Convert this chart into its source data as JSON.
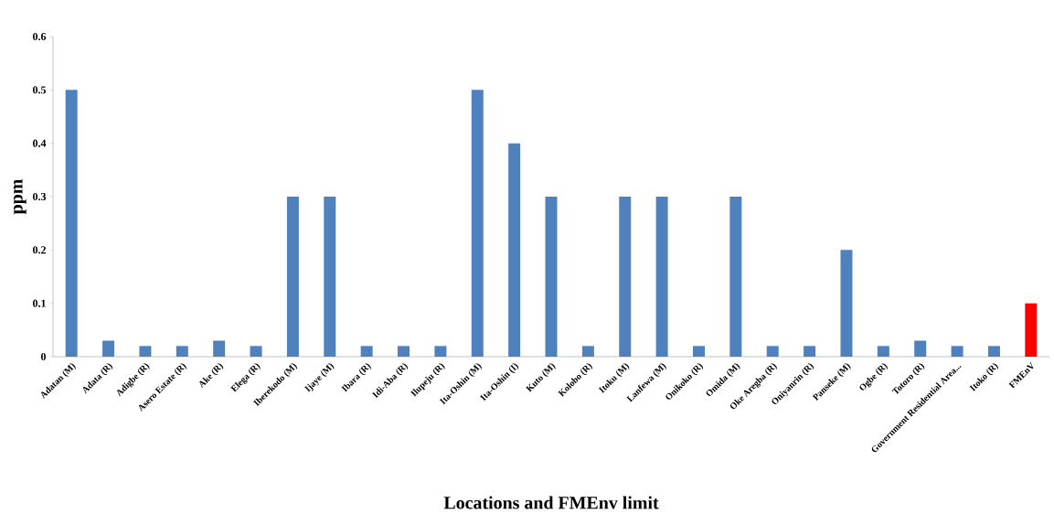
{
  "chart_data": {
    "type": "bar",
    "xlabel": "Locations and FMEnv  limit",
    "ylabel": "ppm",
    "categories": [
      "Adatan (M)",
      "Adata (R)",
      "Adigbe (R)",
      "Asero Estate (R)",
      "Ake (R)",
      "Elega (R)",
      "Iberekodo (M)",
      "Ijaye (M)",
      "Ibara (R)",
      "Idi-Aba (R)",
      "Ilupeju (R)",
      "Ita-Oshin (M)",
      "Ita-Oshin (I)",
      "Kuto (M)",
      "Kolobo (R)",
      "Itoku (M)",
      "Lanfewa (M)",
      "Onikoko (R)",
      "Omida (M)",
      "Oke Aregba (R)",
      "Oniyanrin (R)",
      "Panseke (M)",
      "Ogbe (R)",
      "Totoro  (R)",
      "Government Residential Area...",
      "Itoko (R)",
      "FMEnV"
    ],
    "values": [
      0.5,
      0.03,
      0.02,
      0.02,
      0.03,
      0.02,
      0.3,
      0.3,
      0.02,
      0.02,
      0.02,
      0.5,
      0.4,
      0.3,
      0.02,
      0.3,
      0.3,
      0.02,
      0.3,
      0.02,
      0.02,
      0.2,
      0.02,
      0.03,
      0.02,
      0.02,
      0.1
    ],
    "colors": [
      "#4f81bd",
      "#4f81bd",
      "#4f81bd",
      "#4f81bd",
      "#4f81bd",
      "#4f81bd",
      "#4f81bd",
      "#4f81bd",
      "#4f81bd",
      "#4f81bd",
      "#4f81bd",
      "#4f81bd",
      "#4f81bd",
      "#4f81bd",
      "#4f81bd",
      "#4f81bd",
      "#4f81bd",
      "#4f81bd",
      "#4f81bd",
      "#4f81bd",
      "#4f81bd",
      "#4f81bd",
      "#4f81bd",
      "#4f81bd",
      "#4f81bd",
      "#4f81bd",
      "#ff0000"
    ],
    "ylim": [
      0,
      0.6
    ],
    "yticks": [
      0,
      0.1,
      0.2,
      0.3,
      0.4,
      0.5,
      0.6
    ]
  }
}
